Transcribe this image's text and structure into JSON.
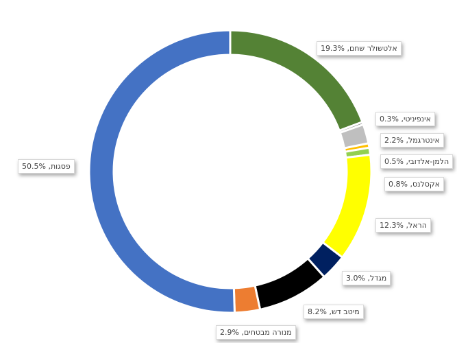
{
  "chart_data": {
    "type": "pie",
    "variant": "donut",
    "slices": [
      {
        "name": "אלטשולר שחם",
        "value": 19.3,
        "label": "אלטשולר שחם, 19.3%",
        "color": "#548235"
      },
      {
        "name": "אינפיניטי",
        "value": 0.3,
        "label": "אינפיניטי, 0.3%",
        "color": "#7f7f7f"
      },
      {
        "name": "אינטרגמל",
        "value": 2.2,
        "label": "אינטרגמל, 2.2%",
        "color": "#bfbfbf"
      },
      {
        "name": "הלמן-אלדובי",
        "value": 0.5,
        "label": "הלמן-אלדובי, 0.5%",
        "color": "#ffc000"
      },
      {
        "name": "אקסלנס",
        "value": 0.8,
        "label": "אקסלנס, 0.8%",
        "color": "#92d050"
      },
      {
        "name": "הראל",
        "value": 12.3,
        "label": "הראל, 12.3%",
        "color": "#ffff00"
      },
      {
        "name": "מגדל",
        "value": 3.0,
        "label": "מגדל, 3.0%",
        "color": "#002060"
      },
      {
        "name": "מיטב דש",
        "value": 8.2,
        "label": "מיטב דש, 8.2%",
        "color": "#000000"
      },
      {
        "name": "מנורה מבטחים",
        "value": 2.9,
        "label": "מנורה מבטחים, 2.9%",
        "color": "#ed7d31"
      },
      {
        "name": "פסגות",
        "value": 50.5,
        "label": "פסגות, 50.5%",
        "color": "#4472c4"
      }
    ],
    "legend": "none"
  }
}
